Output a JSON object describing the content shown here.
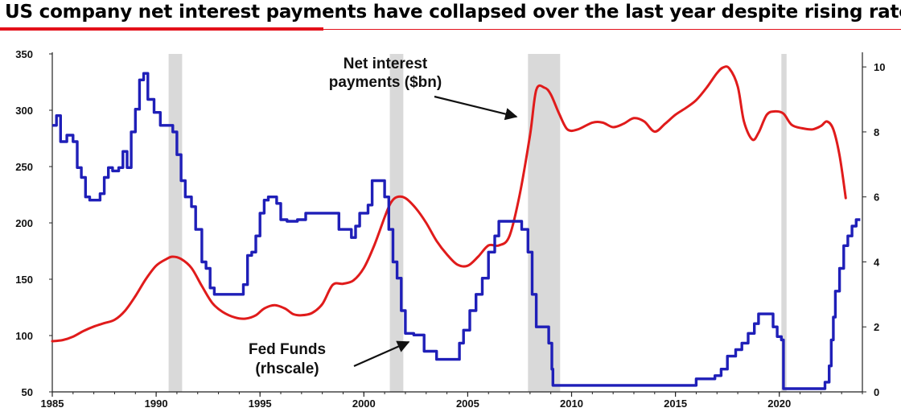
{
  "title": "US company net interest payments have collapsed over the last year despite rising rates!",
  "colors": {
    "interest": "#e01b1b",
    "fed": "#1f1fb8",
    "recession": "#d9d9d9",
    "title_rule": "#e3101a"
  },
  "chart_data": {
    "type": "line",
    "x_range": [
      1985,
      2024
    ],
    "x_ticks": [
      "1985",
      "1990",
      "1995",
      "2000",
      "2005",
      "2010",
      "2015",
      "2020"
    ],
    "y_left": {
      "range": [
        50,
        350
      ],
      "ticks": [
        "50",
        "100",
        "150",
        "200",
        "250",
        "300",
        "350"
      ]
    },
    "y_right": {
      "range": [
        0,
        10.4
      ],
      "ticks": [
        "0",
        "2",
        "4",
        "6",
        "8",
        "10"
      ]
    },
    "grid": false,
    "recessions": [
      [
        1990.6,
        1991.25
      ],
      [
        2001.25,
        2001.9
      ],
      [
        2007.9,
        2009.45
      ],
      [
        2020.1,
        2020.35
      ]
    ],
    "annotations": [
      {
        "lines": [
          "Net interest",
          "payments ($bn)"
        ],
        "series": "interest"
      },
      {
        "lines": [
          "Fed Funds",
          "(rhscale)"
        ],
        "series": "fed"
      }
    ],
    "series": [
      {
        "key": "interest",
        "axis": "left",
        "points": [
          [
            1985,
            95
          ],
          [
            1985.5,
            96
          ],
          [
            1986,
            99
          ],
          [
            1986.5,
            104
          ],
          [
            1987,
            108
          ],
          [
            1987.5,
            111
          ],
          [
            1988,
            114
          ],
          [
            1988.5,
            122
          ],
          [
            1989,
            135
          ],
          [
            1989.5,
            150
          ],
          [
            1990,
            162
          ],
          [
            1990.5,
            168
          ],
          [
            1990.8,
            170
          ],
          [
            1991.2,
            168
          ],
          [
            1991.7,
            160
          ],
          [
            1992.2,
            144
          ],
          [
            1992.7,
            129
          ],
          [
            1993.2,
            121
          ],
          [
            1993.8,
            116
          ],
          [
            1994.3,
            115
          ],
          [
            1994.8,
            118
          ],
          [
            1995.2,
            124
          ],
          [
            1995.7,
            127
          ],
          [
            1996.2,
            124
          ],
          [
            1996.6,
            119
          ],
          [
            1997,
            118
          ],
          [
            1997.5,
            120
          ],
          [
            1998,
            128
          ],
          [
            1998.5,
            145
          ],
          [
            1999,
            146
          ],
          [
            1999.5,
            149
          ],
          [
            2000,
            160
          ],
          [
            2000.5,
            180
          ],
          [
            2001,
            205
          ],
          [
            2001.3,
            218
          ],
          [
            2001.6,
            223
          ],
          [
            2002,
            222
          ],
          [
            2002.5,
            213
          ],
          [
            2003,
            200
          ],
          [
            2003.5,
            184
          ],
          [
            2004,
            172
          ],
          [
            2004.5,
            163
          ],
          [
            2005,
            162
          ],
          [
            2005.5,
            170
          ],
          [
            2006,
            180
          ],
          [
            2006.5,
            180
          ],
          [
            2007,
            188
          ],
          [
            2007.5,
            225
          ],
          [
            2008,
            278
          ],
          [
            2008.3,
            318
          ],
          [
            2008.7,
            320
          ],
          [
            2009,
            314
          ],
          [
            2009.4,
            297
          ],
          [
            2009.8,
            283
          ],
          [
            2010.3,
            283
          ],
          [
            2011,
            289
          ],
          [
            2011.5,
            289
          ],
          [
            2012,
            285
          ],
          [
            2012.5,
            288
          ],
          [
            2013,
            293
          ],
          [
            2013.5,
            290
          ],
          [
            2014,
            281
          ],
          [
            2014.5,
            288
          ],
          [
            2015,
            296
          ],
          [
            2015.5,
            302
          ],
          [
            2016,
            309
          ],
          [
            2016.5,
            320
          ],
          [
            2017,
            333
          ],
          [
            2017.3,
            338
          ],
          [
            2017.6,
            337
          ],
          [
            2018,
            321
          ],
          [
            2018.3,
            290
          ],
          [
            2018.7,
            274
          ],
          [
            2019,
            280
          ],
          [
            2019.4,
            296
          ],
          [
            2019.8,
            299
          ],
          [
            2020.2,
            297
          ],
          [
            2020.6,
            287
          ],
          [
            2021.1,
            284
          ],
          [
            2021.6,
            283
          ],
          [
            2022,
            286
          ],
          [
            2022.3,
            290
          ],
          [
            2022.6,
            283
          ],
          [
            2022.9,
            260
          ],
          [
            2023.2,
            222
          ]
        ]
      },
      {
        "key": "fed",
        "axis": "right",
        "points": [
          [
            1985,
            8.2
          ],
          [
            1985.2,
            8.5
          ],
          [
            1985.4,
            7.7
          ],
          [
            1985.7,
            7.9
          ],
          [
            1986,
            7.7
          ],
          [
            1986.2,
            6.9
          ],
          [
            1986.4,
            6.6
          ],
          [
            1986.6,
            6.0
          ],
          [
            1986.8,
            5.9
          ],
          [
            1987,
            5.9
          ],
          [
            1987.3,
            6.1
          ],
          [
            1987.5,
            6.6
          ],
          [
            1987.7,
            6.9
          ],
          [
            1987.9,
            6.8
          ],
          [
            1988.2,
            6.9
          ],
          [
            1988.4,
            7.4
          ],
          [
            1988.6,
            6.9
          ],
          [
            1988.8,
            8.0
          ],
          [
            1989,
            8.7
          ],
          [
            1989.2,
            9.6
          ],
          [
            1989.4,
            9.8
          ],
          [
            1989.6,
            9.0
          ],
          [
            1989.9,
            8.6
          ],
          [
            1990.2,
            8.2
          ],
          [
            1990.5,
            8.2
          ],
          [
            1990.8,
            8.0
          ],
          [
            1991,
            7.3
          ],
          [
            1991.2,
            6.5
          ],
          [
            1991.4,
            6.0
          ],
          [
            1991.7,
            5.7
          ],
          [
            1991.9,
            5.0
          ],
          [
            1992.2,
            4.0
          ],
          [
            1992.4,
            3.8
          ],
          [
            1992.6,
            3.2
          ],
          [
            1992.8,
            3.0
          ],
          [
            1993.2,
            3.0
          ],
          [
            1993.7,
            3.0
          ],
          [
            1994,
            3.0
          ],
          [
            1994.2,
            3.3
          ],
          [
            1994.4,
            4.2
          ],
          [
            1994.6,
            4.3
          ],
          [
            1994.8,
            4.8
          ],
          [
            1995,
            5.5
          ],
          [
            1995.2,
            5.9
          ],
          [
            1995.4,
            6.0
          ],
          [
            1995.8,
            5.8
          ],
          [
            1996,
            5.3
          ],
          [
            1996.3,
            5.25
          ],
          [
            1996.8,
            5.3
          ],
          [
            1997.2,
            5.5
          ],
          [
            1997.8,
            5.5
          ],
          [
            1998.5,
            5.5
          ],
          [
            1998.8,
            5.0
          ],
          [
            1999.4,
            4.75
          ],
          [
            1999.6,
            5.1
          ],
          [
            1999.8,
            5.5
          ],
          [
            2000.2,
            5.75
          ],
          [
            2000.4,
            6.5
          ],
          [
            2000.9,
            6.5
          ],
          [
            2001,
            6.0
          ],
          [
            2001.2,
            5.0
          ],
          [
            2001.4,
            4.0
          ],
          [
            2001.6,
            3.5
          ],
          [
            2001.8,
            2.5
          ],
          [
            2002,
            1.8
          ],
          [
            2002.4,
            1.75
          ],
          [
            2002.9,
            1.25
          ],
          [
            2003.2,
            1.25
          ],
          [
            2003.5,
            1.0
          ],
          [
            2004,
            1.0
          ],
          [
            2004.4,
            1.0
          ],
          [
            2004.6,
            1.5
          ],
          [
            2004.8,
            1.9
          ],
          [
            2005.1,
            2.5
          ],
          [
            2005.4,
            3.0
          ],
          [
            2005.7,
            3.5
          ],
          [
            2006,
            4.3
          ],
          [
            2006.3,
            4.8
          ],
          [
            2006.5,
            5.25
          ],
          [
            2006.8,
            5.25
          ],
          [
            2007.4,
            5.25
          ],
          [
            2007.6,
            5.0
          ],
          [
            2007.9,
            4.3
          ],
          [
            2008.1,
            3.0
          ],
          [
            2008.3,
            2.0
          ],
          [
            2008.7,
            2.0
          ],
          [
            2008.9,
            1.5
          ],
          [
            2009.05,
            0.7
          ],
          [
            2009.1,
            0.2
          ],
          [
            2010,
            0.2
          ],
          [
            2012,
            0.2
          ],
          [
            2014,
            0.2
          ],
          [
            2015.9,
            0.2
          ],
          [
            2016,
            0.4
          ],
          [
            2016.9,
            0.5
          ],
          [
            2017.2,
            0.7
          ],
          [
            2017.5,
            1.1
          ],
          [
            2017.9,
            1.3
          ],
          [
            2018.2,
            1.5
          ],
          [
            2018.5,
            1.8
          ],
          [
            2018.8,
            2.1
          ],
          [
            2019,
            2.4
          ],
          [
            2019.5,
            2.4
          ],
          [
            2019.7,
            2.0
          ],
          [
            2019.9,
            1.7
          ],
          [
            2020.1,
            1.6
          ],
          [
            2020.2,
            0.1
          ],
          [
            2021,
            0.1
          ],
          [
            2022,
            0.1
          ],
          [
            2022.2,
            0.3
          ],
          [
            2022.4,
            0.8
          ],
          [
            2022.5,
            1.6
          ],
          [
            2022.6,
            2.3
          ],
          [
            2022.7,
            3.1
          ],
          [
            2022.9,
            3.8
          ],
          [
            2023.1,
            4.5
          ],
          [
            2023.3,
            4.8
          ],
          [
            2023.5,
            5.1
          ],
          [
            2023.7,
            5.3
          ],
          [
            2023.9,
            5.3
          ]
        ]
      }
    ]
  }
}
